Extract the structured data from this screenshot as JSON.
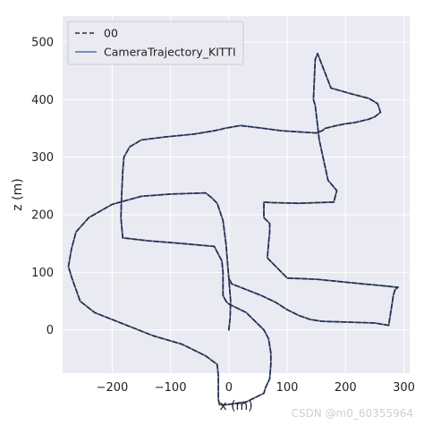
{
  "chart_data": {
    "type": "line",
    "xlabel": "x (m)",
    "ylabel": "z (m)",
    "xlim": [
      -285,
      310
    ],
    "ylim": [
      -75,
      545
    ],
    "x_ticks": [
      -200,
      -100,
      0,
      100,
      200,
      300
    ],
    "x_tick_labels": [
      "−200",
      "−100",
      "0",
      "100",
      "200",
      "300"
    ],
    "y_ticks": [
      0,
      100,
      200,
      300,
      400,
      500
    ],
    "y_tick_labels": [
      "0",
      "100",
      "200",
      "300",
      "400",
      "500"
    ],
    "grid": true,
    "legend_position": "top-left",
    "series": [
      {
        "name": "00",
        "style": "dashed",
        "color": "#2b2b3f",
        "x": [
          0,
          2,
          3,
          0,
          -5,
          -10,
          -20,
          -30,
          -40,
          -100,
          -150,
          -200,
          -240,
          -262,
          -270,
          -275,
          -269,
          -255,
          -230,
          -180,
          -130,
          -80,
          -40,
          -20,
          -18,
          -18,
          -18,
          -16,
          -5,
          30,
          60,
          63,
          70,
          72,
          72,
          68,
          60,
          50,
          40,
          30,
          20,
          10,
          0,
          -5,
          -10,
          -10,
          -10,
          -12,
          -25,
          -80,
          -140,
          -182,
          -185,
          -184,
          -182,
          -180,
          -170,
          -150,
          -110,
          -60,
          -30,
          -15,
          -8,
          20,
          60,
          90,
          120,
          150,
          160,
          165,
          185,
          200,
          215,
          240,
          250,
          260,
          255,
          240,
          210,
          175,
          152,
          148,
          145,
          148,
          155,
          170,
          185,
          180,
          120,
          75,
          60,
          60,
          60,
          60,
          70,
          70,
          68,
          66,
          100,
          150,
          170,
          190,
          210,
          230,
          250,
          270,
          290,
          285,
          282,
          280,
          274,
          250,
          160,
          140,
          120,
          100,
          80,
          55,
          30,
          5,
          0
        ],
        "y": [
          0,
          20,
          50,
          90,
          150,
          190,
          220,
          230,
          238,
          236,
          232,
          218,
          195,
          170,
          140,
          110,
          90,
          50,
          30,
          10,
          -10,
          -25,
          -45,
          -60,
          -80,
          -100,
          -120,
          -130,
          -130,
          -125,
          -110,
          -100,
          -85,
          -60,
          -40,
          -15,
          0,
          10,
          20,
          30,
          35,
          40,
          45,
          50,
          60,
          80,
          100,
          120,
          145,
          150,
          155,
          160,
          195,
          230,
          275,
          300,
          318,
          330,
          335,
          340,
          345,
          348,
          350,
          355,
          350,
          346,
          344,
          342,
          346,
          350,
          355,
          358,
          360,
          366,
          370,
          378,
          393,
          402,
          410,
          420,
          480,
          470,
          400,
          390,
          330,
          260,
          242,
          222,
          220,
          221,
          222,
          215,
          200,
          195,
          185,
          170,
          150,
          125,
          90,
          88,
          86,
          84,
          82,
          80,
          78,
          76,
          74,
          70,
          60,
          46,
          8,
          12,
          15,
          18,
          25,
          35,
          48,
          60,
          70,
          80,
          90
        ]
      },
      {
        "name": "CameraTrajectory_KITTI",
        "style": "solid",
        "color": "#4c72b0",
        "x": [
          0,
          2,
          3,
          0,
          -5,
          -10,
          -20,
          -30,
          -40,
          -100,
          -150,
          -200,
          -240,
          -262,
          -270,
          -275,
          -269,
          -255,
          -230,
          -180,
          -130,
          -80,
          -40,
          -20,
          -18,
          -18,
          -18,
          -16,
          -5,
          30,
          60,
          63,
          70,
          72,
          72,
          68,
          60,
          50,
          40,
          30,
          20,
          10,
          0,
          -5,
          -10,
          -10,
          -10,
          -12,
          -25,
          -80,
          -140,
          -182,
          -185,
          -184,
          -182,
          -180,
          -170,
          -150,
          -110,
          -60,
          -30,
          -15,
          -8,
          20,
          60,
          90,
          120,
          150,
          160,
          165,
          185,
          200,
          215,
          240,
          250,
          260,
          255,
          240,
          210,
          175,
          152,
          148,
          145,
          148,
          155,
          170,
          185,
          180,
          120,
          75,
          60,
          60,
          60,
          60,
          70,
          70,
          68,
          66,
          100,
          150,
          170,
          190,
          210,
          230,
          250,
          270,
          290,
          285,
          282,
          280,
          274,
          250,
          160,
          140,
          120,
          100,
          80,
          55,
          30,
          5,
          0
        ],
        "y": [
          0,
          20,
          50,
          90,
          150,
          190,
          220,
          230,
          238,
          236,
          232,
          218,
          195,
          170,
          140,
          110,
          90,
          50,
          30,
          10,
          -10,
          -25,
          -45,
          -60,
          -80,
          -100,
          -120,
          -130,
          -130,
          -125,
          -110,
          -100,
          -85,
          -60,
          -40,
          -15,
          0,
          10,
          20,
          30,
          35,
          40,
          45,
          50,
          60,
          80,
          100,
          120,
          145,
          150,
          155,
          160,
          195,
          230,
          275,
          300,
          318,
          330,
          335,
          340,
          345,
          348,
          350,
          355,
          350,
          346,
          344,
          342,
          346,
          350,
          355,
          358,
          360,
          366,
          370,
          378,
          393,
          402,
          410,
          420,
          480,
          470,
          400,
          390,
          330,
          260,
          242,
          222,
          220,
          221,
          222,
          215,
          200,
          195,
          185,
          170,
          150,
          125,
          90,
          88,
          86,
          84,
          82,
          80,
          78,
          76,
          74,
          70,
          60,
          46,
          8,
          12,
          15,
          18,
          25,
          35,
          48,
          60,
          70,
          80,
          90
        ]
      }
    ]
  },
  "colors": {
    "plot_background": "#eaeaf2",
    "grid": "#ffffff"
  },
  "watermark": "CSDN @m0_60355964"
}
